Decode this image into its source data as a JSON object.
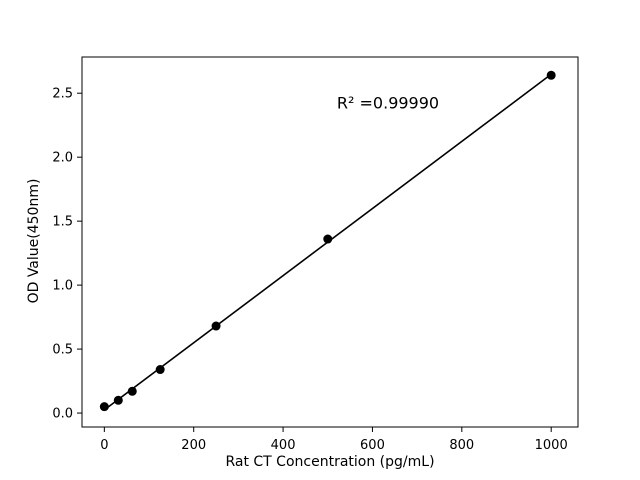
{
  "chart_data": {
    "type": "scatter",
    "title": "",
    "xlabel": "Rat CT Concentration (pg/mL)",
    "ylabel": "OD Value(450nm)",
    "annotation": "R² =0.99990",
    "series": [
      {
        "name": "standards",
        "marker": "circle",
        "marker_color": "#000000",
        "marker_radius": 4.5,
        "x": [
          0,
          31.25,
          62.5,
          125,
          250,
          500,
          1000
        ],
        "y": [
          0.05,
          0.1,
          0.17,
          0.34,
          0.68,
          1.36,
          2.64
        ]
      }
    ],
    "fit_line": {
      "name": "linear-fit",
      "color": "#000000",
      "width": 1.6,
      "x": [
        0,
        1000
      ],
      "y": [
        0.025,
        2.648
      ]
    },
    "x_ticks": {
      "values": [
        0,
        200,
        400,
        600,
        800,
        1000
      ],
      "labels": [
        "0",
        "200",
        "400",
        "600",
        "800",
        "1000"
      ]
    },
    "y_ticks": {
      "values": [
        0,
        0.5,
        1.0,
        1.5,
        2.0,
        2.5
      ],
      "labels": [
        "0.0",
        "0.5",
        "1.0",
        "1.5",
        "2.0",
        "2.5"
      ]
    },
    "xlim": [
      -50,
      1060
    ],
    "ylim": [
      -0.109,
      2.783
    ],
    "grid": false,
    "legend": null,
    "background_color": "#ffffff",
    "axis_color": "#000000",
    "tick_label_color": "#000000"
  }
}
